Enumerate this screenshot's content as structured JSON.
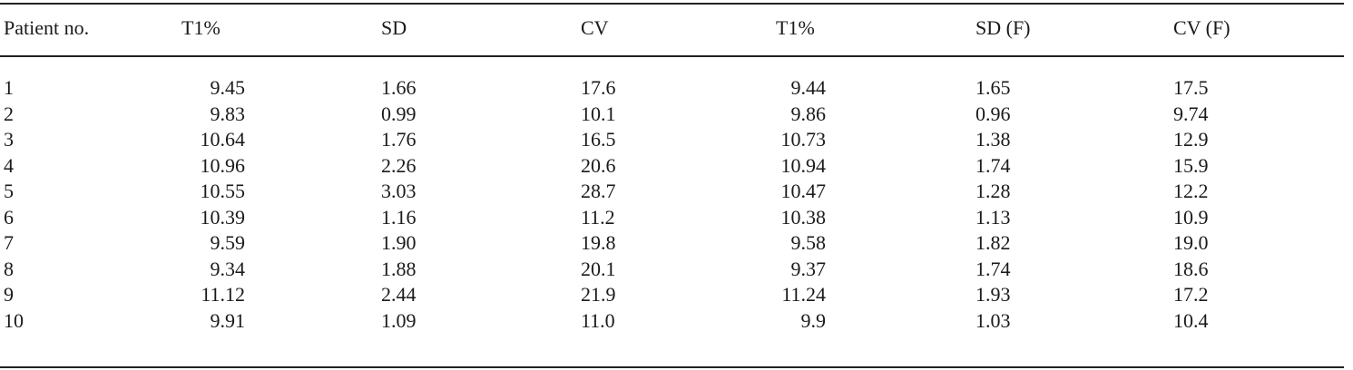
{
  "table": {
    "headers": [
      "Patient no.",
      "T1%",
      "SD",
      "CV",
      "T1%",
      "SD (F)",
      "CV (F)"
    ],
    "rows": [
      [
        "1",
        "9.45",
        "1.66",
        "17.6",
        "9.44",
        "1.65",
        "17.5"
      ],
      [
        "2",
        "9.83",
        "0.99",
        "10.1",
        "9.86",
        "0.96",
        "9.74"
      ],
      [
        "3",
        "10.64",
        "1.76",
        "16.5",
        "10.73",
        "1.38",
        "12.9"
      ],
      [
        "4",
        "10.96",
        "2.26",
        "20.6",
        "10.94",
        "1.74",
        "15.9"
      ],
      [
        "5",
        "10.55",
        "3.03",
        "28.7",
        "10.47",
        "1.28",
        "12.2"
      ],
      [
        "6",
        "10.39",
        "1.16",
        "11.2",
        "10.38",
        "1.13",
        "10.9"
      ],
      [
        "7",
        "9.59",
        "1.90",
        "19.8",
        "9.58",
        "1.82",
        "19.0"
      ],
      [
        "8",
        "9.34",
        "1.88",
        "20.1",
        "9.37",
        "1.74",
        "18.6"
      ],
      [
        "9",
        "11.12",
        "2.44",
        "21.9",
        "11.24",
        "1.93",
        "17.2"
      ],
      [
        "10",
        "9.91",
        "1.09",
        "11.0",
        "9.9",
        "1.03",
        "10.4"
      ]
    ]
  }
}
